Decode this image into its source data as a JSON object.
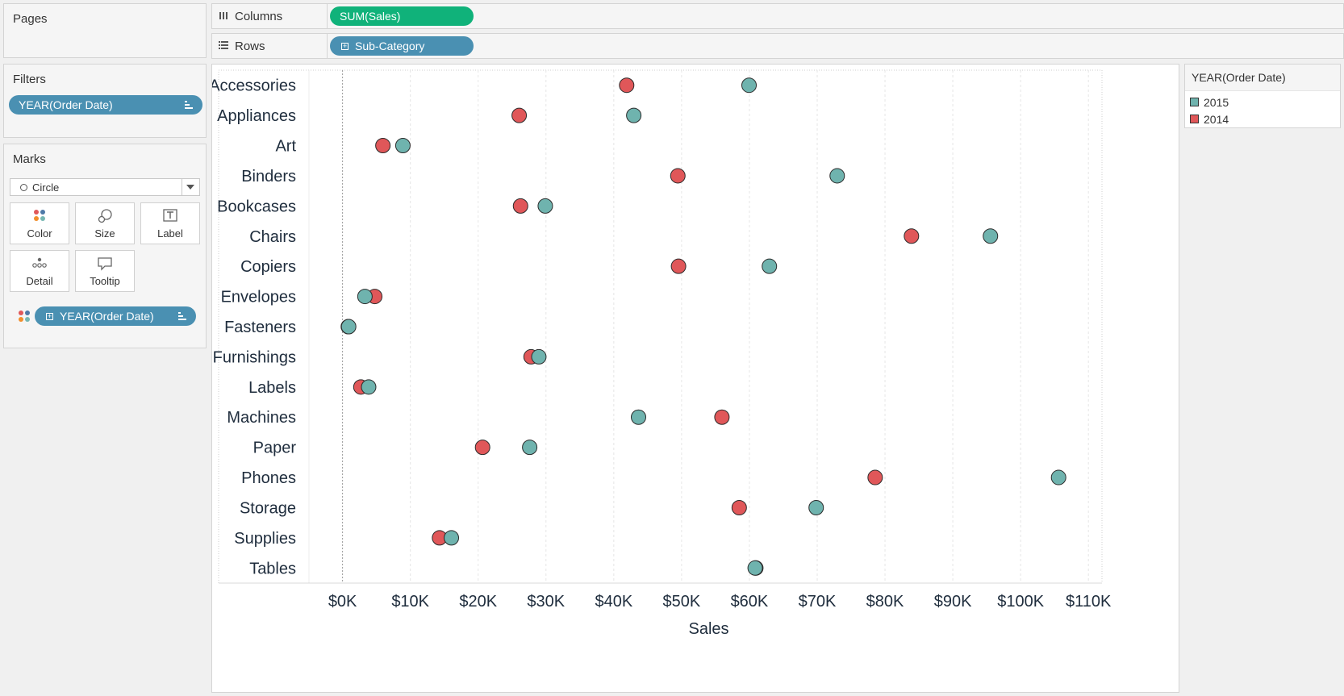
{
  "pages": {
    "title": "Pages"
  },
  "filters": {
    "title": "Filters",
    "pill": "YEAR(Order Date)"
  },
  "marks": {
    "title": "Marks",
    "mark_type": "Circle",
    "buttons": {
      "color": "Color",
      "size": "Size",
      "label": "Label",
      "detail": "Detail",
      "tooltip": "Tooltip"
    },
    "color_pill": "YEAR(Order Date)"
  },
  "columns": {
    "label": "Columns",
    "pill": "SUM(Sales)"
  },
  "rows": {
    "label": "Rows",
    "pill": "Sub-Category"
  },
  "legend": {
    "title": "YEAR(Order Date)",
    "items": [
      {
        "label": "2015",
        "color": "#6fb3ae"
      },
      {
        "label": "2014",
        "color": "#e05759"
      }
    ]
  },
  "chart_data": {
    "type": "scatter",
    "title": "",
    "xlabel": "Sales",
    "ylabel": "",
    "xlim": [
      -4000,
      112000
    ],
    "x_tick_values": [
      0,
      10000,
      20000,
      30000,
      40000,
      50000,
      60000,
      70000,
      80000,
      90000,
      100000,
      110000
    ],
    "x_tick_labels": [
      "$0K",
      "$10K",
      "$20K",
      "$30K",
      "$40K",
      "$50K",
      "$60K",
      "$70K",
      "$80K",
      "$90K",
      "$100K",
      "$110K"
    ],
    "categories": [
      "Accessories",
      "Appliances",
      "Art",
      "Binders",
      "Bookcases",
      "Chairs",
      "Copiers",
      "Envelopes",
      "Fasteners",
      "Furnishings",
      "Labels",
      "Machines",
      "Paper",
      "Phones",
      "Storage",
      "Supplies",
      "Tables"
    ],
    "grid": true,
    "series": [
      {
        "name": "2014",
        "color": "#e05759",
        "values": [
          41900,
          26050,
          5950,
          49450,
          26250,
          83900,
          49550,
          4750,
          850,
          27800,
          2700,
          55950,
          20650,
          78550,
          58500,
          14300,
          60950
        ]
      },
      {
        "name": "2015",
        "color": "#6fb3ae",
        "values": [
          59950,
          42950,
          8900,
          72950,
          29900,
          95550,
          62950,
          3300,
          900,
          28950,
          3850,
          43650,
          27600,
          105600,
          69850,
          16050,
          60850
        ]
      }
    ]
  }
}
